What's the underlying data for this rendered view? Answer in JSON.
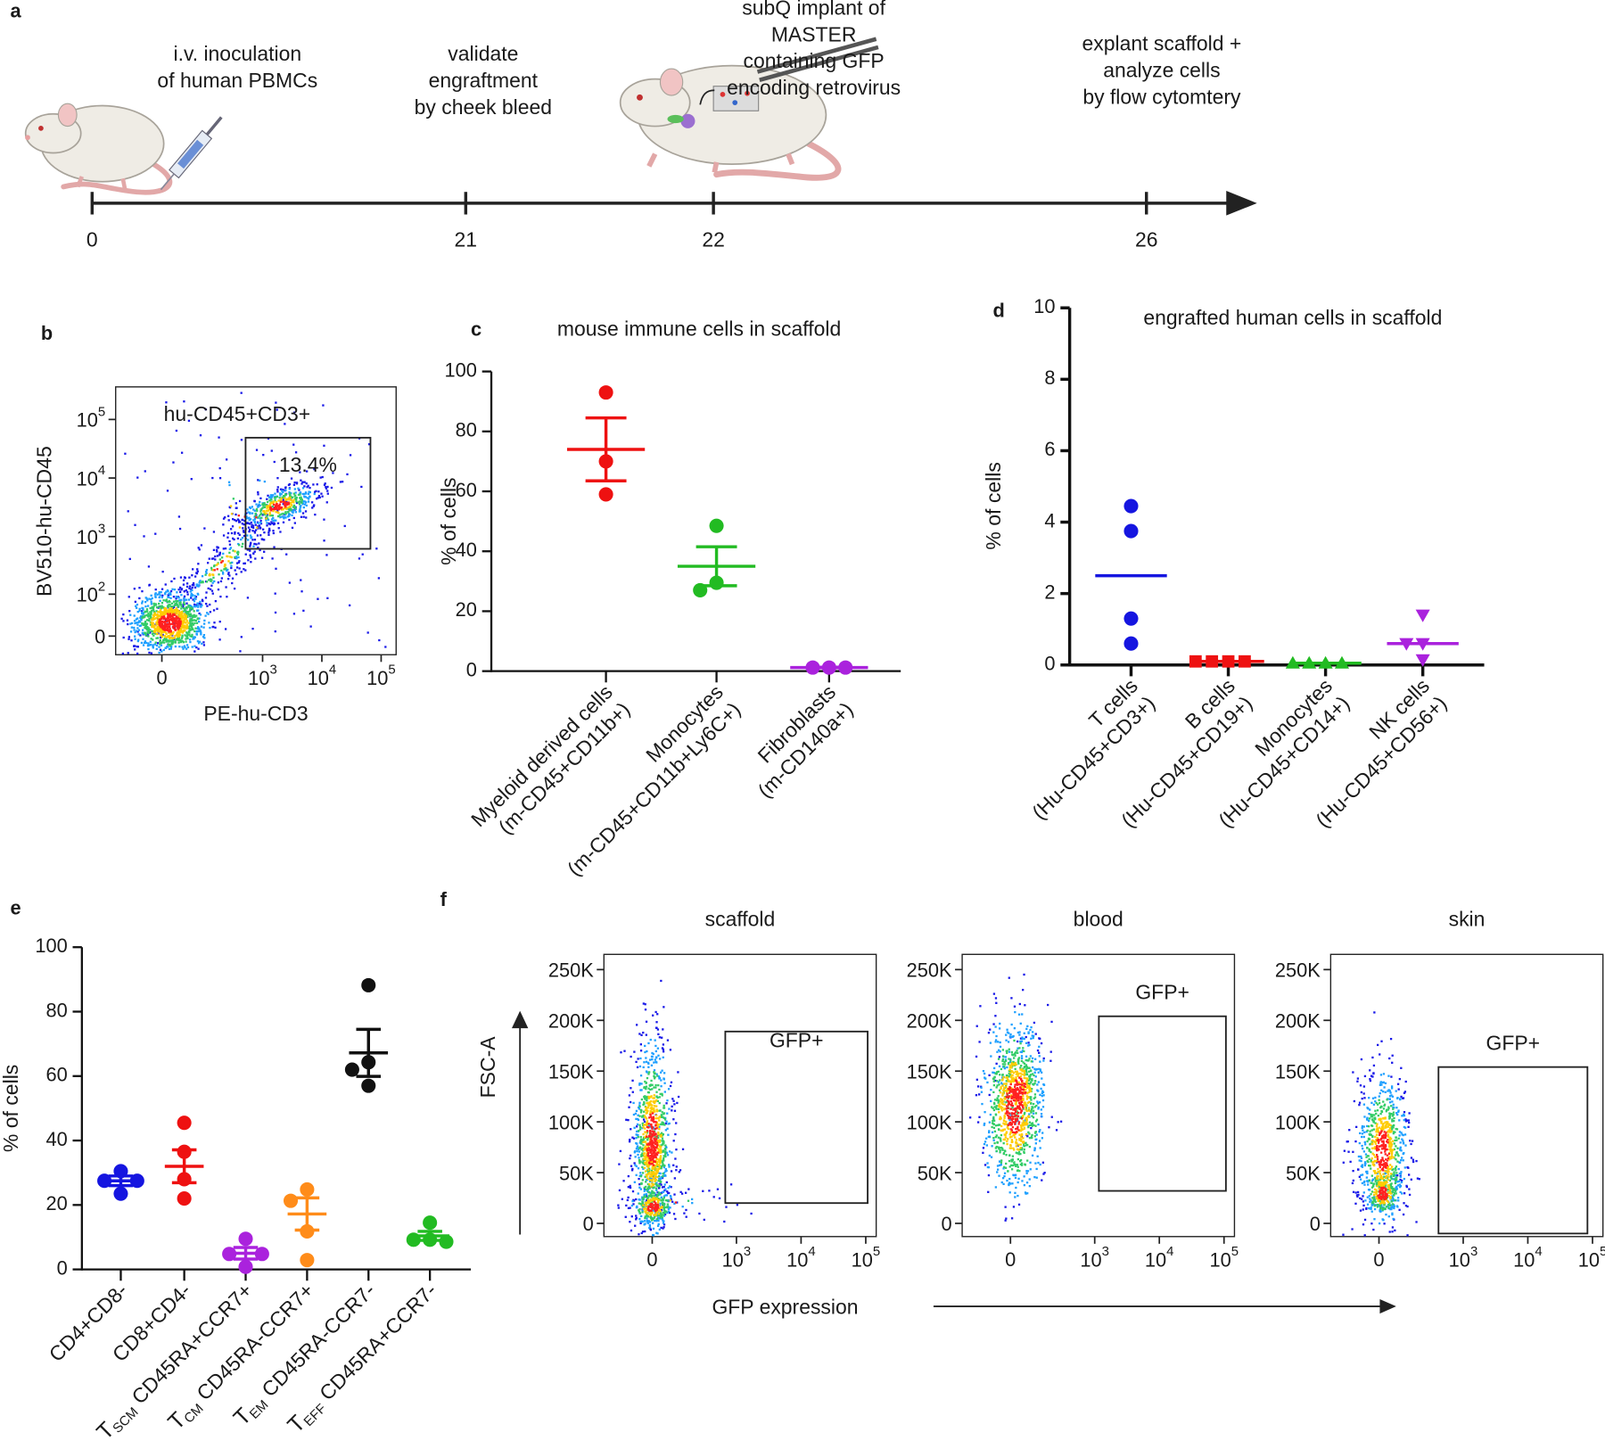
{
  "chart_data": [
    {
      "type": "timeline",
      "panel": "a",
      "categories": [
        "0",
        "21",
        "22",
        "26"
      ],
      "annotations": [
        [
          "i.v. inoculation",
          "of human PBMCs"
        ],
        [
          "validate",
          "engraftment",
          "by cheek bleed"
        ],
        [
          "subQ implant of",
          "MASTER",
          "containing GFP",
          "encoding retrovirus"
        ],
        [
          "explant scaffold +",
          "analyze cells",
          "by flow cytomtery"
        ]
      ]
    },
    {
      "type": "flow",
      "panel": "b",
      "title": "hu-CD45+CD3+",
      "xlabel": "PE-hu-CD3",
      "ylabel": "BV510-hu-CD45",
      "xscale": "biexponential",
      "yscale": "biexponential",
      "xlim": [
        -117,
        179000
      ],
      "ylim": [
        -32,
        360000
      ],
      "xticks": [
        0,
        {
          "value": 1000,
          "label": "10",
          "exponent": "3"
        },
        {
          "value": 10000,
          "label": "10",
          "exponent": "4"
        },
        {
          "value": 100000,
          "label": "10",
          "exponent": "5"
        }
      ],
      "yticks": [
        0,
        {
          "value": 100,
          "label": "10",
          "exponent": "2"
        },
        {
          "value": 1000,
          "label": "10",
          "exponent": "3"
        },
        {
          "value": 10000,
          "label": "10",
          "exponent": "4"
        },
        {
          "value": 100000,
          "label": "10",
          "exponent": "5"
        }
      ],
      "gates": [
        {
          "x": [
            516,
            66000
          ],
          "y": [
            617,
            48800
          ]
        }
      ],
      "values": [
        13.4
      ],
      "value_labels": [
        "13.4%"
      ]
    },
    {
      "type": "dot",
      "panel": "c",
      "title": "mouse immune cells in scaffold",
      "ylabel": "% of cells",
      "ylim": [
        0,
        100
      ],
      "yticks": [
        0,
        20,
        40,
        60,
        80,
        100
      ],
      "series": [
        {
          "name": [
            "Myeloid derived cells",
            "(m-CD45+CD11b+)"
          ],
          "color": "#ee1111",
          "marker": "circle",
          "values": [
            93,
            70,
            59
          ],
          "mean": 74,
          "error": 10.5
        },
        {
          "name": [
            "Monocytes",
            "(m-CD45+CD11b+Ly6C+)"
          ],
          "color": "#22bb22",
          "marker": "circle",
          "values": [
            48.5,
            29.5,
            27
          ],
          "mean": 35,
          "error": 6.5
        },
        {
          "name": [
            "Fibroblasts",
            "(m-CD140a+)"
          ],
          "color": "#aa22dd",
          "marker": "circle",
          "values": [
            1.2,
            1.2,
            1.2
          ],
          "mean": 1.2,
          "error": 0.1
        }
      ]
    },
    {
      "type": "dot",
      "panel": "d",
      "title": "engrafted human cells in scaffold",
      "ylabel": "% of cells",
      "ylim": [
        0,
        10
      ],
      "yticks": [
        0,
        2,
        4,
        6,
        8,
        10
      ],
      "series": [
        {
          "name": [
            "T cells",
            "(Hu-CD45+CD3+)"
          ],
          "color": "#1515e0",
          "marker": "circle",
          "values": [
            4.45,
            3.75,
            1.3,
            0.6
          ],
          "mean": 2.5
        },
        {
          "name": [
            "B cells",
            "(Hu-CD45+CD19+)"
          ],
          "color": "#ee1111",
          "marker": "square",
          "values": [
            0.1,
            0.1,
            0.1,
            0.1
          ],
          "mean": 0.1
        },
        {
          "name": [
            "Monocytes",
            "(Hu-CD45+CD14+)"
          ],
          "color": "#22bb22",
          "marker": "triangle",
          "values": [
            0.05,
            0.05,
            0.05,
            0.05
          ],
          "mean": 0.05
        },
        {
          "name": [
            "NK cells",
            "(Hu-CD45+CD56+)"
          ],
          "color": "#aa22dd",
          "marker": "triangle-down",
          "values": [
            1.4,
            0.6,
            0.6,
            0.15
          ],
          "mean": 0.6
        }
      ]
    },
    {
      "type": "dot",
      "panel": "e",
      "ylabel": "% of cells",
      "ylim": [
        0,
        100
      ],
      "yticks": [
        0,
        20,
        40,
        60,
        80,
        100
      ],
      "series": [
        {
          "name": "CD4+CD8-",
          "color": "#1515e0",
          "marker": "circle",
          "values": [
            30.5,
            27.5,
            27.5,
            23.5
          ],
          "mean": 27.5,
          "error": 1.5
        },
        {
          "name": "CD8+CD4-",
          "color": "#ee1111",
          "marker": "circle",
          "values": [
            45.5,
            36.5,
            28,
            22
          ],
          "mean": 32,
          "error": 5.1
        },
        {
          "prefix": "T",
          "subscript": "SCM",
          "name": "CD45RA+CCR7+",
          "color": "#aa22dd",
          "marker": "circle",
          "values": [
            9.5,
            4.8,
            4.8,
            0.8
          ],
          "mean": 5,
          "error": 1.8
        },
        {
          "prefix": "T",
          "subscript": "CM",
          "name": "CD45RA-CCR7+",
          "color": "#ff8c1a",
          "marker": "circle",
          "values": [
            24.8,
            21.3,
            11.8,
            2.9
          ],
          "mean": 17.2,
          "error": 5
        },
        {
          "prefix": "T",
          "subscript": "EM",
          "name": "CD45RA-CCR7-",
          "color": "#111111",
          "marker": "circle",
          "values": [
            88.2,
            64.3,
            62,
            57
          ],
          "mean": 67.2,
          "error": 7.3
        },
        {
          "prefix": "T",
          "subscript": "EFF",
          "name": "CD45RA+CCR7-",
          "color": "#22bb22",
          "marker": "circle",
          "values": [
            14.5,
            9.2,
            9.2,
            8.6
          ],
          "mean": 10.4,
          "error": 1.4
        }
      ]
    },
    {
      "type": "flow",
      "panel": "f",
      "xlabel": "GFP expression",
      "ylabel": "FSC-A",
      "xscale": "biexponential",
      "yscale": "linear",
      "xlim": [
        -270,
        145000
      ],
      "ylim": [
        -13000,
        265000
      ],
      "xticks": [
        0,
        {
          "value": 1000,
          "label": "10",
          "exponent": "3"
        },
        {
          "value": 10000,
          "label": "10",
          "exponent": "4"
        },
        {
          "value": 100000,
          "label": "10",
          "exponent": "5"
        }
      ],
      "yticks": [
        0,
        {
          "value": 50000,
          "label": "50K"
        },
        {
          "value": 100000,
          "label": "100K"
        },
        {
          "value": 150000,
          "label": "150K"
        },
        {
          "value": 200000,
          "label": "200K"
        },
        {
          "value": 250000,
          "label": "250K"
        }
      ],
      "facets": [
        {
          "title": "scaffold",
          "gate_label": "GFP+",
          "gate": {
            "x": [
              670,
              107000
            ],
            "y": [
              20000,
              189000
            ]
          }
        },
        {
          "title": "blood",
          "gate_label": "GFP+",
          "gate": {
            "x": [
              1160,
              107000
            ],
            "y": [
              32000,
              204000
            ]
          }
        },
        {
          "title": "skin",
          "gate_label": "GFP+",
          "gate": {
            "x": [
              410,
              83500
            ],
            "y": [
              -10000,
              154000
            ]
          }
        }
      ]
    }
  ]
}
